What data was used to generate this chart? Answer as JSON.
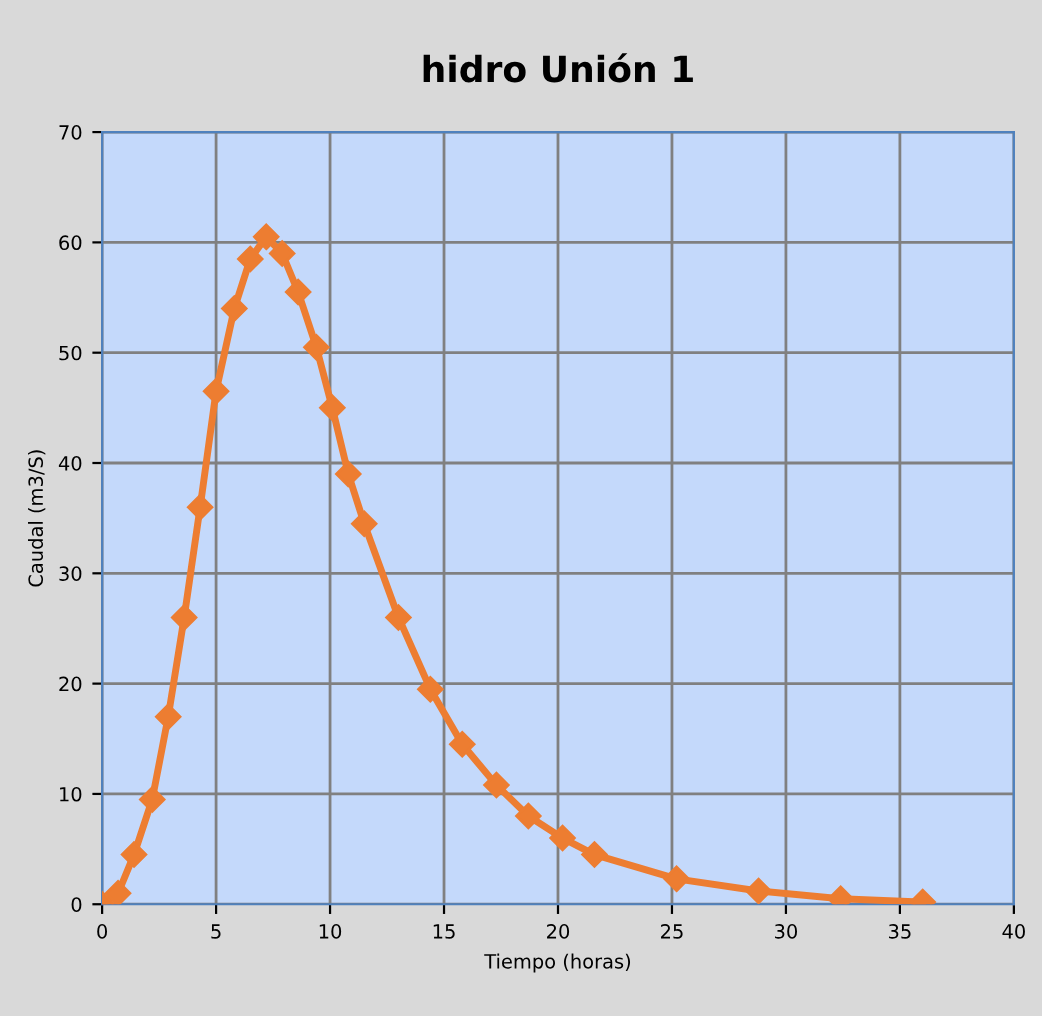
{
  "chart_data": {
    "type": "line",
    "title": "hidro Unión 1",
    "xlabel": "Tiempo (horas)",
    "ylabel": "Caudal (m3/S)",
    "x": [
      0,
      0.7,
      1.4,
      2.2,
      2.9,
      3.6,
      4.3,
      5.0,
      5.8,
      6.5,
      7.2,
      7.9,
      8.6,
      9.4,
      10.1,
      10.8,
      11.5,
      13.0,
      14.4,
      15.8,
      17.3,
      18.7,
      20.2,
      21.6,
      25.2,
      28.8,
      32.4,
      36.0
    ],
    "series": [
      {
        "color": "#ed7d31",
        "values": [
          0,
          1,
          4.5,
          9.5,
          17,
          26,
          36,
          46.5,
          54,
          58.5,
          60.5,
          59,
          55.5,
          50.5,
          45,
          39,
          34.5,
          26,
          19.5,
          14.5,
          10.8,
          8,
          6,
          4.5,
          2.3,
          1.2,
          0.5,
          0.2
        ]
      }
    ],
    "xlim": [
      0,
      40
    ],
    "xticks": [
      0,
      5,
      10,
      15,
      20,
      25,
      30,
      35,
      40
    ],
    "ylim": [
      0,
      70
    ],
    "yticks": [
      0,
      10,
      20,
      30,
      40,
      50,
      60,
      70
    ],
    "grid": true,
    "legend": false,
    "marker": "diamond",
    "line_style": "solid"
  }
}
